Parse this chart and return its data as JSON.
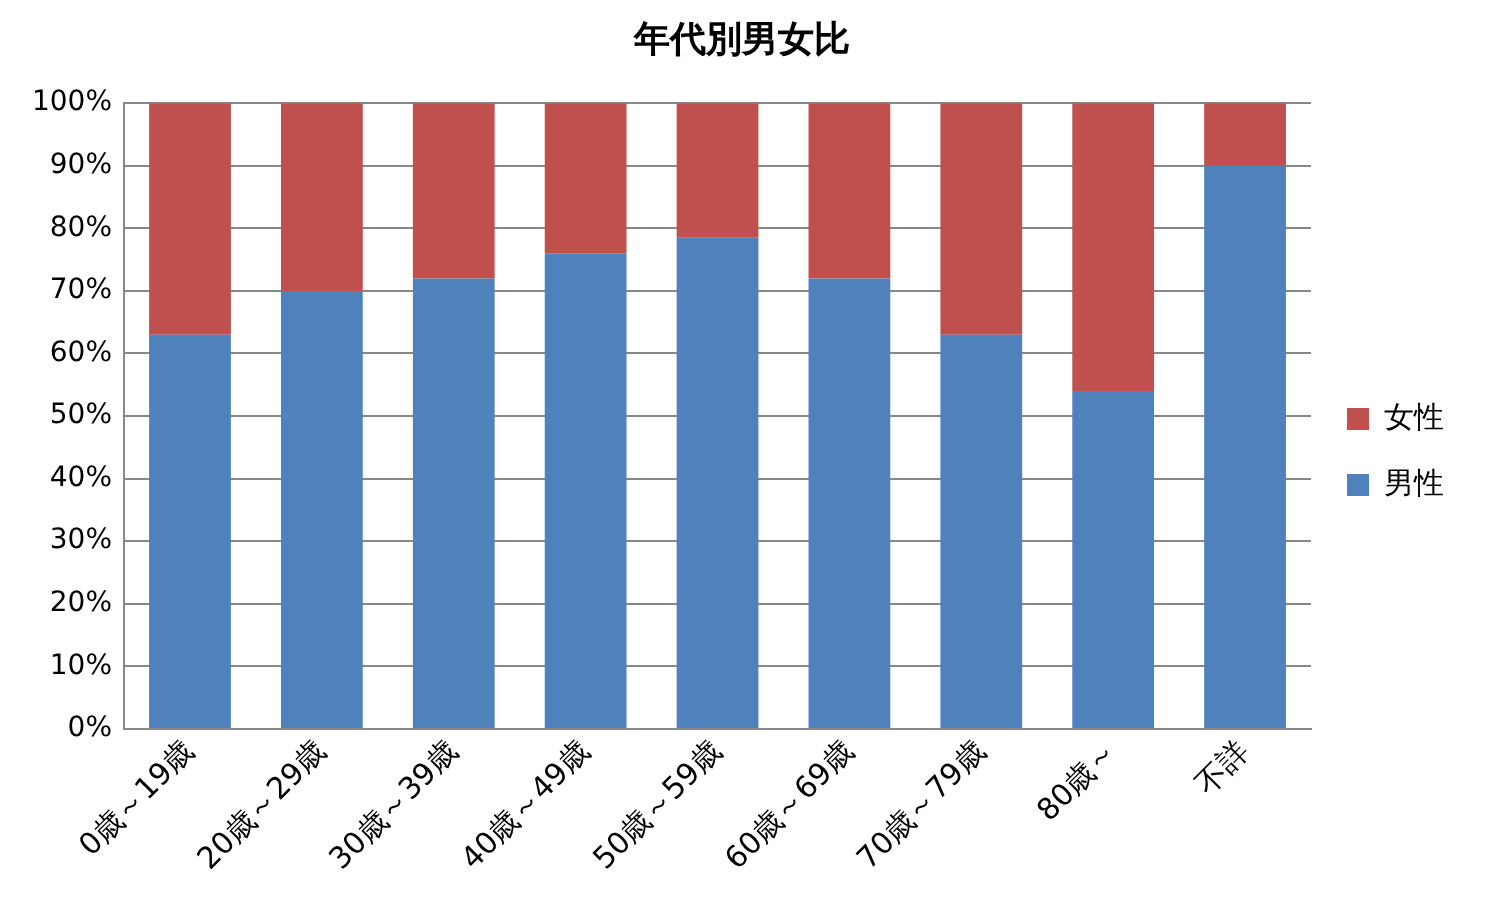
{
  "chart_data": {
    "type": "bar",
    "title": "年代別男女比",
    "stacked": true,
    "categories": [
      "0歳～19歳",
      "20歳～29歳",
      "30歳～39歳",
      "40歳～49歳",
      "50歳～59歳",
      "60歳～69歳",
      "70歳～79歳",
      "80歳～",
      "不詳"
    ],
    "series": [
      {
        "name": "男性",
        "color": "#4f81bd",
        "values": [
          63,
          70,
          72,
          76,
          78.5,
          72,
          63,
          54,
          90
        ]
      },
      {
        "name": "女性",
        "color": "#c0504d",
        "values": [
          37,
          30,
          28,
          24,
          21.5,
          28,
          37,
          46,
          10
        ]
      }
    ],
    "ylim": [
      0,
      100
    ],
    "yticks": [
      {
        "value": 0,
        "label": "0%"
      },
      {
        "value": 10,
        "label": "10%"
      },
      {
        "value": 20,
        "label": "20%"
      },
      {
        "value": 30,
        "label": "30%"
      },
      {
        "value": 40,
        "label": "40%"
      },
      {
        "value": 50,
        "label": "50%"
      },
      {
        "value": 60,
        "label": "60%"
      },
      {
        "value": 70,
        "label": "70%"
      },
      {
        "value": 80,
        "label": "80%"
      },
      {
        "value": 90,
        "label": "90%"
      },
      {
        "value": 100,
        "label": "100%"
      }
    ],
    "grid": "y",
    "legend": "right"
  }
}
